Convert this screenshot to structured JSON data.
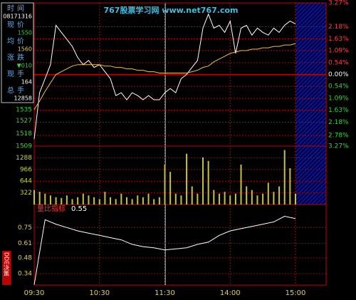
{
  "info_panel": {
    "rows": [
      {
        "label": "时间",
        "value": "08171316"
      },
      {
        "label": "现价",
        "value": "1550"
      },
      {
        "label": "均价",
        "value": "1560"
      },
      {
        "label": "涨跌",
        "value": "▼010"
      },
      {
        "label": "现手",
        "value": "164"
      },
      {
        "label": "总手",
        "value": "12858"
      }
    ]
  },
  "watermark": "767股票学习网 www.net767.com",
  "side_tab": "DDE决策",
  "chart_data": [
    {
      "type": "line",
      "tick_color": "#3fd03f",
      "x": [
        0,
        5,
        10,
        15,
        20,
        25,
        30,
        35,
        40,
        45,
        50,
        55,
        60,
        65,
        70,
        75,
        80,
        85,
        90,
        95,
        100,
        105,
        110,
        115,
        120,
        125,
        130,
        135,
        140,
        145,
        150,
        155,
        160,
        165,
        170,
        175,
        180,
        185,
        190,
        195,
        200,
        205,
        210,
        215,
        220,
        225,
        230,
        235,
        240
      ],
      "xlim": [
        0,
        240
      ],
      "xticks": [
        {
          "value": 0,
          "label": "09:30"
        },
        {
          "value": 60,
          "label": "10:30"
        },
        {
          "value": 120,
          "label": "11:30"
        },
        {
          "value": 180,
          "label": "14:00"
        },
        {
          "value": 240,
          "label": "15:00"
        }
      ],
      "ylim": [
        1509,
        1611
      ],
      "yticks": [
        1509,
        1518,
        1527,
        1535
      ],
      "y2lim": [
        -3.27,
        3.27
      ],
      "y2ticks": [
        {
          "value": 3.27,
          "label": "3.27%"
        },
        {
          "value": 2.18,
          "label": "2.18%"
        },
        {
          "value": 1.63,
          "label": "1.63%"
        },
        {
          "value": 1.09,
          "label": "1.09%"
        },
        {
          "value": 0.54,
          "label": "0.54%"
        },
        {
          "value": 0,
          "label": "0.00%"
        },
        {
          "value": -0.54,
          "label": "0.54%"
        },
        {
          "value": -1.09,
          "label": "1.09%"
        },
        {
          "value": -1.63,
          "label": "1.63%"
        },
        {
          "value": -2.18,
          "label": "2.18%"
        },
        {
          "value": -2.78,
          "label": "2.78%"
        },
        {
          "value": -3.27,
          "label": "3.27%"
        }
      ],
      "series": [
        {
          "color": "#ffffff",
          "values": [
            1514,
            1547,
            1557,
            1567,
            1595,
            1590,
            1585,
            1580,
            1572,
            1567,
            1570,
            1565,
            1567,
            1562,
            1557,
            1545,
            1547,
            1542,
            1547,
            1545,
            1542,
            1545,
            1542,
            1542,
            1547,
            1550,
            1547,
            1557,
            1560,
            1565,
            1570,
            1593,
            1603,
            1593,
            1595,
            1590,
            1598,
            1575,
            1593,
            1595,
            1588,
            1593,
            1590,
            1588,
            1593,
            1590,
            1595,
            1598,
            1596
          ]
        },
        {
          "color": "#e8c050",
          "values": [
            1535,
            1541,
            1548,
            1554,
            1560,
            1562,
            1564,
            1566,
            1567,
            1567,
            1567,
            1567,
            1567,
            1566,
            1566,
            1565,
            1565,
            1564,
            1564,
            1563,
            1563,
            1562,
            1562,
            1561,
            1561,
            1561,
            1561,
            1561,
            1561,
            1562,
            1563,
            1565,
            1566,
            1569,
            1571,
            1573,
            1575,
            1576,
            1577,
            1577,
            1578,
            1578,
            1579,
            1579,
            1580,
            1580,
            1581,
            1581,
            1582
          ]
        }
      ]
    },
    {
      "type": "bar",
      "tick_color": "#c8d040",
      "color": "#c8c040",
      "x": [
        0,
        5,
        10,
        15,
        20,
        25,
        30,
        35,
        40,
        45,
        50,
        55,
        60,
        65,
        70,
        75,
        80,
        85,
        90,
        95,
        100,
        105,
        110,
        115,
        120,
        125,
        130,
        135,
        140,
        145,
        150,
        155,
        160,
        165,
        170,
        175,
        180,
        185,
        190,
        195,
        200,
        205,
        210,
        215,
        220,
        225,
        230,
        235,
        240
      ],
      "xlim": [
        0,
        240
      ],
      "ylim": [
        0,
        1610
      ],
      "yticks": [
        322,
        644,
        966,
        1288
      ],
      "values": [
        400,
        350,
        300,
        250,
        200,
        180,
        250,
        150,
        200,
        300,
        250,
        200,
        150,
        350,
        200,
        150,
        300,
        200,
        150,
        250,
        200,
        300,
        150,
        200,
        1100,
        900,
        300,
        250,
        1400,
        500,
        300,
        1300,
        1200,
        400,
        300,
        350,
        250,
        300,
        1100,
        500,
        400,
        250,
        300,
        600,
        350,
        500,
        1500,
        1000,
        300
      ]
    },
    {
      "type": "line",
      "tick_color": "#e0d060",
      "title": "量比指标",
      "current_value": 0.55,
      "x": [
        0,
        10,
        20,
        30,
        40,
        50,
        60,
        70,
        80,
        90,
        100,
        110,
        120,
        130,
        140,
        150,
        160,
        170,
        180,
        190,
        200,
        210,
        220,
        230,
        240
      ],
      "xlim": [
        0,
        240
      ],
      "ylim": [
        0.238,
        0.955
      ],
      "yticks": [
        0.34,
        0.48,
        0.61,
        0.75
      ],
      "series": [
        {
          "color": "#ffffff",
          "values": [
            0.24,
            0.82,
            0.78,
            0.75,
            0.72,
            0.7,
            0.68,
            0.66,
            0.64,
            0.6,
            0.58,
            0.57,
            0.55,
            0.56,
            0.57,
            0.6,
            0.62,
            0.68,
            0.72,
            0.74,
            0.76,
            0.78,
            0.8,
            0.85,
            0.83
          ]
        }
      ]
    }
  ]
}
